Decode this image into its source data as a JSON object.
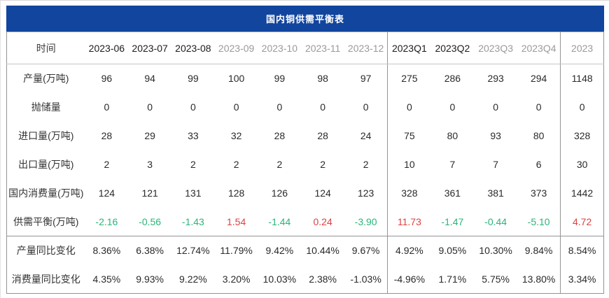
{
  "colors": {
    "title_bar_bg": "#11459e",
    "title_text": "#ffffff",
    "positive_value": "#e04040",
    "negative_value": "#2bb47a",
    "dark_header_text": "#1b1b1b",
    "gray_header_text": "#9a9a9a",
    "body_text": "#2a2a2a",
    "border": "#949494"
  },
  "chart_data": {
    "type": "table",
    "title": "国内铜供需平衡表",
    "corner_label": "时间",
    "columns": [
      {
        "label": "2023-06",
        "tone": "dark",
        "sep": false
      },
      {
        "label": "2023-07",
        "tone": "dark",
        "sep": false
      },
      {
        "label": "2023-08",
        "tone": "dark",
        "sep": false
      },
      {
        "label": "2023-09",
        "tone": "gray",
        "sep": false
      },
      {
        "label": "2023-10",
        "tone": "gray",
        "sep": false
      },
      {
        "label": "2023-11",
        "tone": "gray",
        "sep": false
      },
      {
        "label": "2023-12",
        "tone": "gray",
        "sep": false
      },
      {
        "label": "2023Q1",
        "tone": "dark",
        "sep": true
      },
      {
        "label": "2023Q2",
        "tone": "dark",
        "sep": false
      },
      {
        "label": "2023Q3",
        "tone": "gray",
        "sep": false
      },
      {
        "label": "2023Q4",
        "tone": "gray",
        "sep": false
      },
      {
        "label": "2023",
        "tone": "gray",
        "sep": true
      }
    ],
    "rows": [
      {
        "label": "产量(万吨)",
        "style": "plain",
        "section_start": false,
        "values": [
          "96",
          "94",
          "99",
          "100",
          "99",
          "98",
          "97",
          "275",
          "286",
          "293",
          "294",
          "1148"
        ]
      },
      {
        "label": "抛储量",
        "style": "plain",
        "section_start": false,
        "values": [
          "0",
          "0",
          "0",
          "0",
          "0",
          "0",
          "0",
          "0",
          "0",
          "0",
          "0",
          "0"
        ]
      },
      {
        "label": "进口量(万吨)",
        "style": "plain",
        "section_start": false,
        "values": [
          "28",
          "29",
          "33",
          "32",
          "28",
          "28",
          "24",
          "75",
          "80",
          "93",
          "80",
          "328"
        ]
      },
      {
        "label": "出口量(万吨)",
        "style": "plain",
        "section_start": false,
        "values": [
          "2",
          "3",
          "2",
          "2",
          "2",
          "2",
          "2",
          "10",
          "7",
          "7",
          "6",
          "30"
        ]
      },
      {
        "label": "国内消费量(万吨)",
        "style": "plain",
        "section_start": false,
        "values": [
          "124",
          "121",
          "131",
          "128",
          "126",
          "124",
          "123",
          "328",
          "361",
          "381",
          "373",
          "1442"
        ]
      },
      {
        "label": "供需平衡(万吨)",
        "style": "signed",
        "section_start": false,
        "values": [
          "-2.16",
          "-0.56",
          "-1.43",
          "1.54",
          "-1.44",
          "0.24",
          "-3.90",
          "11.73",
          "-1.47",
          "-0.44",
          "-5.10",
          "4.72"
        ]
      },
      {
        "label": "产量同比变化",
        "style": "plain",
        "section_start": true,
        "values": [
          "8.36%",
          "6.38%",
          "12.74%",
          "11.79%",
          "9.42%",
          "10.44%",
          "9.67%",
          "4.92%",
          "9.05%",
          "10.30%",
          "9.84%",
          "8.54%"
        ]
      },
      {
        "label": "消费量同比变化",
        "style": "plain",
        "section_start": false,
        "values": [
          "4.35%",
          "9.93%",
          "9.22%",
          "3.20%",
          "10.03%",
          "2.38%",
          "-1.03%",
          "-4.96%",
          "1.71%",
          "5.75%",
          "13.80%",
          "3.34%"
        ]
      }
    ]
  }
}
